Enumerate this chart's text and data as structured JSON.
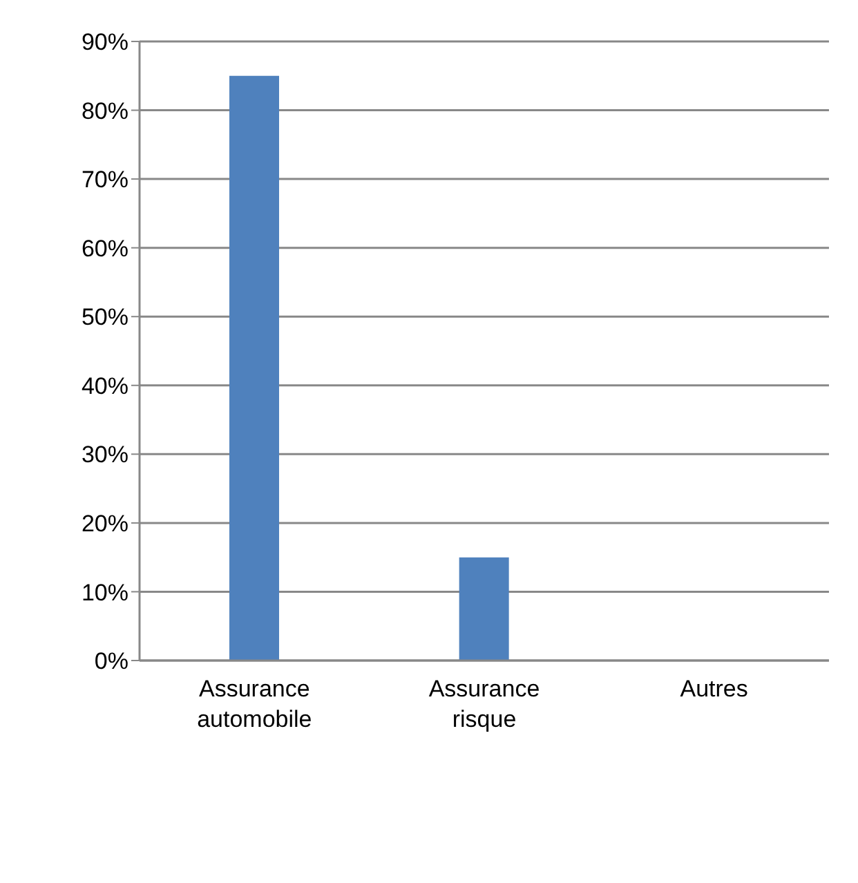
{
  "chart_data": {
    "type": "bar",
    "categories": [
      "Assurance automobile",
      "Assurance risque",
      "Autres"
    ],
    "values": [
      85,
      15,
      0
    ],
    "color": "#4f81bd",
    "ylim": [
      0,
      90
    ],
    "yticks": [
      {
        "value": 0,
        "label": "0%"
      },
      {
        "value": 10,
        "label": "10%"
      },
      {
        "value": 20,
        "label": "20%"
      },
      {
        "value": 30,
        "label": "30%"
      },
      {
        "value": 40,
        "label": "40%"
      },
      {
        "value": 50,
        "label": "50%"
      },
      {
        "value": 60,
        "label": "60%"
      },
      {
        "value": 70,
        "label": "70%"
      },
      {
        "value": 80,
        "label": "80%"
      },
      {
        "value": 90,
        "label": "90%"
      }
    ],
    "grid": "y",
    "legend": false
  }
}
